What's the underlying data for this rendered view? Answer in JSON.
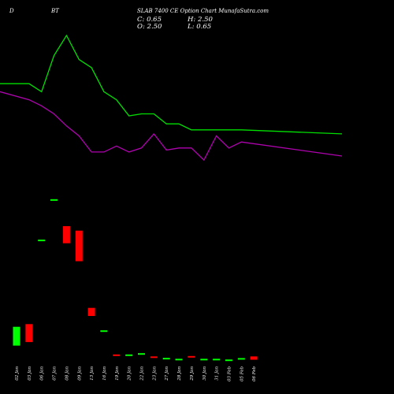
{
  "header": {
    "left": "D",
    "mid": "BT",
    "title": "SLAB 7400 CE Option Chart MunafaSutra.com"
  },
  "ohlc": {
    "c_label": "C: 0.65",
    "o_label": "O: 2.50",
    "h_label": "H: 2.50",
    "l_label": "L: 0.65"
  },
  "colors": {
    "background": "#000000",
    "green": "#00ff00",
    "red": "#ff0000",
    "ema_green": "#00e000",
    "ema_purple": "#b000b0",
    "text": "#ffffff"
  },
  "chart_data": {
    "type": "candlestick",
    "title": "SLAB 7400 CE Option Chart MunafaSutra.com",
    "categories": [
      "02 Jan",
      "03 Jan",
      "06 Jan",
      "07 Jan",
      "08 Jan",
      "09 Jan",
      "13 Jan",
      "16 Jan",
      "19 Jan",
      "20 Jan",
      "22 Jan",
      "23 Jan",
      "27 Jan",
      "28 Jan",
      "29 Jan",
      "30 Jan",
      "31 Jan",
      "03 Feb",
      "05 Feb",
      "06 Feb"
    ],
    "candles": [
      {
        "open": 19.0,
        "close": 8.5,
        "color": "green"
      },
      {
        "open": 20.5,
        "close": 10.5,
        "color": "red"
      },
      {
        "open": 67.5,
        "close": 67.5,
        "color": "green"
      },
      {
        "open": 90.0,
        "close": 90.0,
        "color": "green"
      },
      {
        "open": 75.0,
        "close": 65.5,
        "color": "red"
      },
      {
        "open": 72.5,
        "close": 55.5,
        "color": "red"
      },
      {
        "open": 29.5,
        "close": 25.0,
        "color": "red"
      },
      {
        "open": 17.0,
        "close": 17.0,
        "color": "green"
      },
      {
        "open": 3.6,
        "close": 3.6,
        "color": "red"
      },
      {
        "open": 3.6,
        "close": 3.6,
        "color": "green"
      },
      {
        "open": 4.3,
        "close": 4.3,
        "color": "green"
      },
      {
        "open": 2.5,
        "close": 2.5,
        "color": "red"
      },
      {
        "open": 1.7,
        "close": 1.7,
        "color": "green"
      },
      {
        "open": 1.2,
        "close": 1.2,
        "color": "green"
      },
      {
        "open": 2.7,
        "close": 1.7,
        "color": "red"
      },
      {
        "open": 1.2,
        "close": 1.2,
        "color": "green"
      },
      {
        "open": 1.2,
        "close": 1.2,
        "color": "green"
      },
      {
        "open": 0.8,
        "close": 0.8,
        "color": "green"
      },
      {
        "open": 1.6,
        "close": 1.6,
        "color": "green"
      },
      {
        "open": 2.5,
        "close": 0.65,
        "color": "red"
      }
    ],
    "line_green": [
      0.76,
      0.76,
      0.72,
      0.9,
      1.0,
      0.88,
      0.84,
      0.72,
      0.68,
      0.6,
      0.61,
      0.61,
      0.56,
      0.56,
      0.53,
      0.53,
      0.53,
      0.53,
      0.53,
      0.51
    ],
    "line_purple": [
      0.72,
      0.68,
      0.65,
      0.61,
      0.55,
      0.5,
      0.42,
      0.42,
      0.45,
      0.42,
      0.44,
      0.51,
      0.43,
      0.44,
      0.44,
      0.38,
      0.5,
      0.44,
      0.47,
      0.4
    ]
  }
}
